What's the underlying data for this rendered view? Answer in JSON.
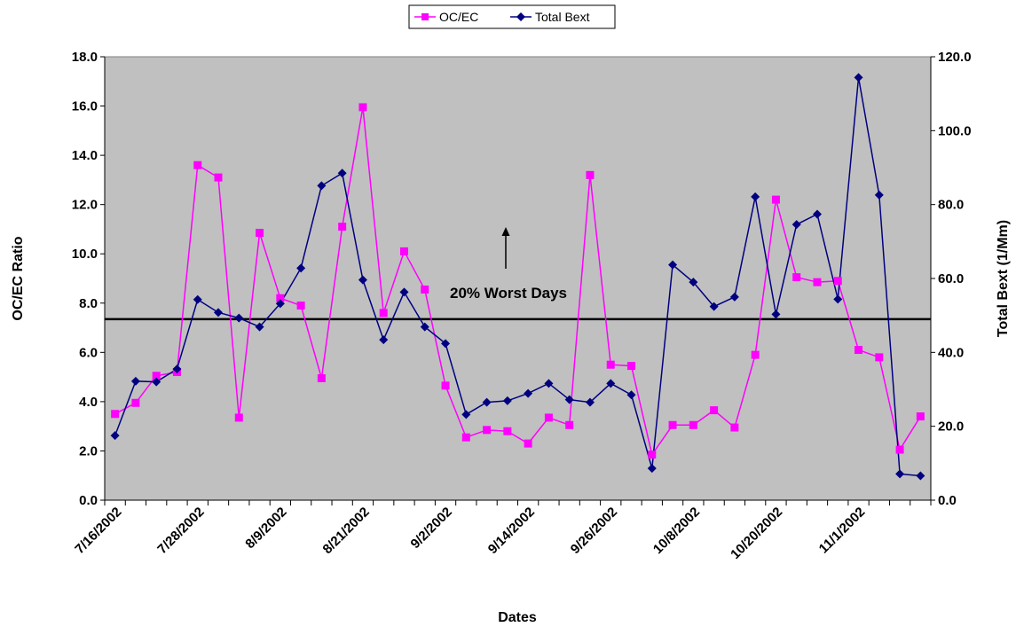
{
  "chart_data": {
    "type": "line",
    "xlabel": "Dates",
    "ylabel_left": "OC/EC Ratio",
    "ylabel_right": "Total Bext (1/Mm)",
    "ylim_left": [
      0,
      18
    ],
    "ylim_right": [
      0,
      120
    ],
    "yticks_left": [
      "0.0",
      "2.0",
      "4.0",
      "6.0",
      "8.0",
      "10.0",
      "12.0",
      "14.0",
      "16.0",
      "18.0"
    ],
    "yticks_right": [
      "0.0",
      "20.0",
      "40.0",
      "60.0",
      "80.0",
      "100.0",
      "120.0"
    ],
    "grid": false,
    "plot_background": "#c0c0c0",
    "legend_position": "top-center",
    "x_tick_labels": [
      {
        "index": 0,
        "label": "7/16/2002"
      },
      {
        "index": 4,
        "label": "7/28/2002"
      },
      {
        "index": 8,
        "label": "8/9/2002"
      },
      {
        "index": 12,
        "label": "8/21/2002"
      },
      {
        "index": 16,
        "label": "9/2/2002"
      },
      {
        "index": 20,
        "label": "9/14/2002"
      },
      {
        "index": 24,
        "label": "9/26/2002"
      },
      {
        "index": 28,
        "label": "10/8/2002"
      },
      {
        "index": 32,
        "label": "10/20/2002"
      },
      {
        "index": 36,
        "label": "11/1/2002"
      }
    ],
    "dates": [
      "7/16/2002",
      "7/19/2002",
      "7/22/2002",
      "7/25/2002",
      "7/28/2002",
      "7/31/2002",
      "8/3/2002",
      "8/6/2002",
      "8/9/2002",
      "8/12/2002",
      "8/15/2002",
      "8/18/2002",
      "8/21/2002",
      "8/24/2002",
      "8/27/2002",
      "8/30/2002",
      "9/2/2002",
      "9/5/2002",
      "9/8/2002",
      "9/11/2002",
      "9/14/2002",
      "9/17/2002",
      "9/20/2002",
      "9/23/2002",
      "9/26/2002",
      "9/29/2002",
      "10/2/2002",
      "10/5/2002",
      "10/8/2002",
      "10/11/2002",
      "10/14/2002",
      "10/17/2002",
      "10/20/2002",
      "10/23/2002",
      "10/26/2002",
      "10/29/2002",
      "11/1/2002",
      "11/4/2002",
      "11/7/2002",
      "11/10/2002"
    ],
    "series": [
      {
        "name": "OC/EC",
        "axis": "left",
        "color": "#ff00ff",
        "marker": "square",
        "values": [
          3.5,
          3.95,
          5.05,
          5.2,
          13.6,
          13.1,
          3.35,
          10.85,
          8.2,
          7.9,
          4.95,
          11.1,
          15.95,
          7.6,
          10.1,
          8.55,
          4.65,
          2.55,
          2.85,
          2.8,
          2.3,
          3.35,
          3.05,
          13.2,
          5.5,
          5.45,
          1.85,
          3.05,
          3.05,
          3.65,
          2.95,
          5.9,
          12.2,
          9.05,
          8.85,
          8.9,
          6.1,
          5.8,
          2.05,
          3.4
        ]
      },
      {
        "name": "Total Bext",
        "axis": "right",
        "color": "#000080",
        "marker": "diamond",
        "values": [
          17.5,
          32.2,
          32.0,
          35.5,
          54.3,
          50.8,
          49.3,
          46.9,
          53.2,
          62.8,
          85.1,
          88.5,
          59.6,
          43.4,
          56.3,
          46.9,
          42.4,
          23.2,
          26.5,
          26.9,
          28.9,
          31.6,
          27.2,
          26.5,
          31.6,
          28.5,
          8.6,
          63.7,
          59.0,
          52.4,
          55.0,
          82.1,
          50.3,
          74.6,
          77.4,
          54.4,
          114.4,
          82.6,
          7.1,
          6.6
        ]
      }
    ],
    "reference_line": {
      "axis": "left",
      "value": 7.35,
      "color": "#000000"
    },
    "annotation": {
      "text": "20% Worst Days",
      "arrow": "up"
    }
  }
}
